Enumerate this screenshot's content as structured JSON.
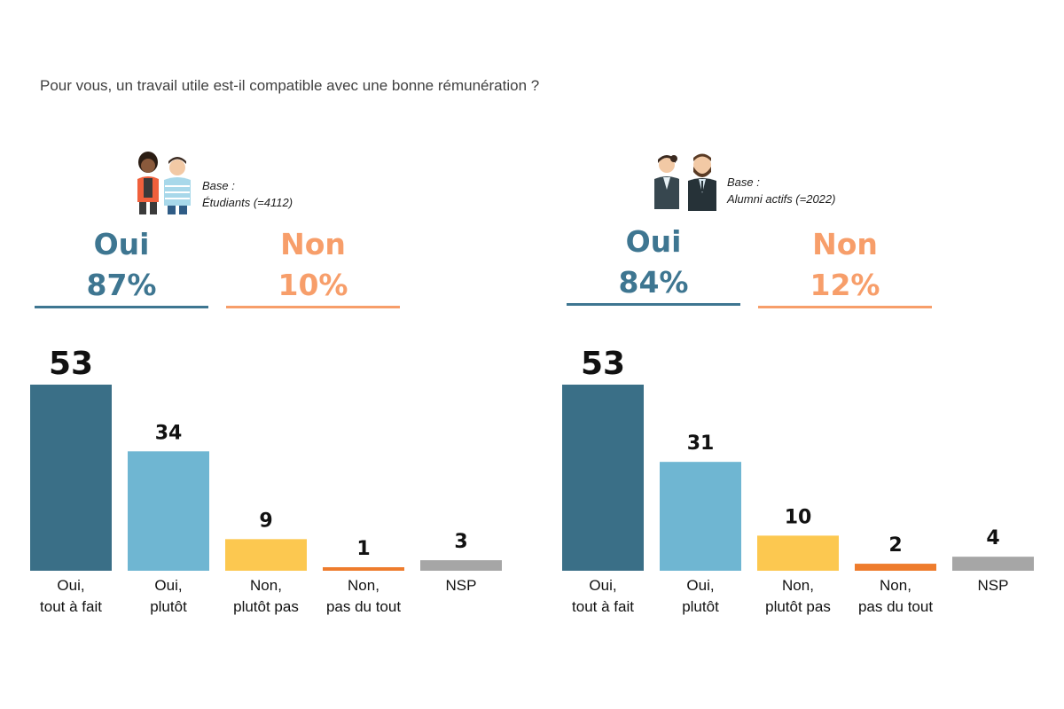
{
  "question": "Pour vous, un travail utile est-il compatible avec une bonne rémunération ?",
  "panels": [
    {
      "base_label": "Base :",
      "base_desc": "Étudiants (=4112)",
      "oui_label": "Oui",
      "oui_pct": "87%",
      "non_label": "Non",
      "non_pct": "10%"
    },
    {
      "base_label": "Base :",
      "base_desc": "Alumni actifs (=2022)",
      "oui_label": "Oui",
      "oui_pct": "84%",
      "non_label": "Non",
      "non_pct": "12%"
    }
  ],
  "colors": {
    "oui_dark": "#3a6f87",
    "oui_light": "#6fb6d2",
    "non_yellow": "#fcc850",
    "non_orange": "#ee7c2d",
    "nsp_gray": "#a6a6a6",
    "oui_text": "#3e7691",
    "non_text": "#f79e6a"
  },
  "chart_data": [
    {
      "type": "bar",
      "title": "Étudiants (=4112)",
      "categories": [
        [
          "Oui,",
          "tout à fait"
        ],
        [
          "Oui,",
          "plutôt"
        ],
        [
          "Non,",
          "plutôt pas"
        ],
        [
          "Non,",
          "pas du tout"
        ],
        [
          "NSP"
        ]
      ],
      "values": [
        53,
        34,
        9,
        1,
        3
      ],
      "ylim": [
        0,
        53
      ]
    },
    {
      "type": "bar",
      "title": "Alumni actifs (=2022)",
      "categories": [
        [
          "Oui,",
          "tout à fait"
        ],
        [
          "Oui,",
          "plutôt"
        ],
        [
          "Non,",
          "plutôt pas"
        ],
        [
          "Non,",
          "pas du tout"
        ],
        [
          "NSP"
        ]
      ],
      "values": [
        53,
        31,
        10,
        2,
        4
      ],
      "ylim": [
        0,
        53
      ]
    }
  ]
}
